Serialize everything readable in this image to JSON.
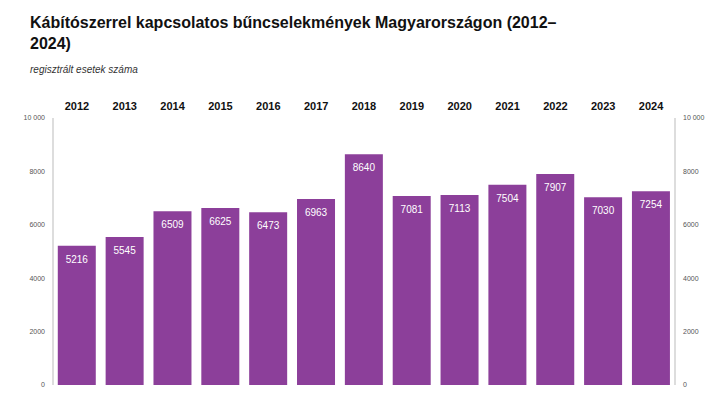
{
  "chart_data": {
    "type": "bar",
    "title": "Kábítószerrel kapcsolatos bűncselekmények Magyarországon (2012–2024)",
    "subtitle": "regisztrált esetek száma",
    "categories": [
      "2012",
      "2013",
      "2014",
      "2015",
      "2016",
      "2017",
      "2018",
      "2019",
      "2020",
      "2021",
      "2022",
      "2023",
      "2024"
    ],
    "values": [
      5216,
      5545,
      6509,
      6625,
      6473,
      6963,
      8640,
      7081,
      7113,
      7504,
      7907,
      7030,
      7254
    ],
    "color": "#8c3f9a",
    "ylim": [
      0,
      10000
    ],
    "yticks": [
      0,
      2000,
      4000,
      6000,
      8000,
      {
        "value": 10000,
        "label": "10 000"
      }
    ],
    "grid": false,
    "data_labels": true
  }
}
